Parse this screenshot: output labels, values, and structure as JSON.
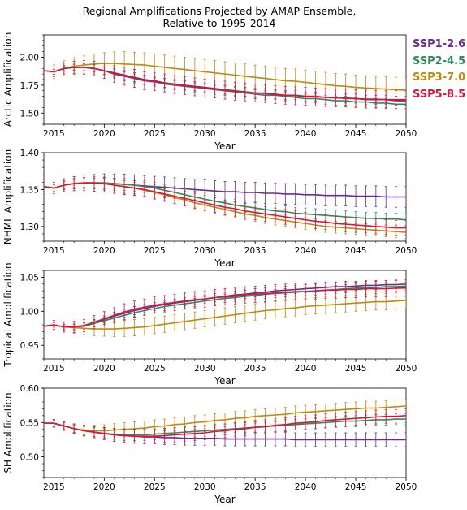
{
  "title_line1": "Regional Amplifications Projected by AMAP Ensemble,",
  "title_line2": "Relative to 1995-2014",
  "legend": [
    {
      "label": "SSP1-2.6",
      "color": "#6a2c91"
    },
    {
      "label": "SSP2-4.5",
      "color": "#2e8b57"
    },
    {
      "label": "SSP3-7.0",
      "color": "#c08a0a"
    },
    {
      "label": "SSP5-8.5",
      "color": "#dc143c"
    }
  ],
  "chart_data": [
    {
      "type": "line",
      "xlabel": "Year",
      "ylabel": "Arctic Amplification",
      "xlim": [
        2014,
        2050
      ],
      "ylim": [
        1.4,
        2.2
      ],
      "xticks": [
        "2015",
        "2020",
        "2025",
        "2030",
        "2035",
        "2040",
        "2045",
        "2050"
      ],
      "yticks": [
        "1.50",
        "1.75",
        "2.00"
      ],
      "x": [
        2014,
        2015,
        2016,
        2017,
        2018,
        2019,
        2020,
        2021,
        2022,
        2023,
        2024,
        2025,
        2026,
        2027,
        2028,
        2029,
        2030,
        2031,
        2032,
        2033,
        2034,
        2035,
        2036,
        2037,
        2038,
        2039,
        2040,
        2041,
        2042,
        2043,
        2044,
        2045,
        2046,
        2047,
        2048,
        2049,
        2050
      ],
      "series": [
        {
          "name": "SSP1-2.6",
          "color": "#6a2c91",
          "err": 0.04,
          "values": [
            1.88,
            1.87,
            1.9,
            1.91,
            1.91,
            1.9,
            1.88,
            1.86,
            1.84,
            1.82,
            1.8,
            1.79,
            1.77,
            1.76,
            1.75,
            1.74,
            1.73,
            1.72,
            1.71,
            1.7,
            1.69,
            1.68,
            1.68,
            1.67,
            1.66,
            1.66,
            1.65,
            1.65,
            1.64,
            1.64,
            1.63,
            1.63,
            1.62,
            1.62,
            1.62,
            1.61,
            1.61
          ]
        },
        {
          "name": "SSP2-4.5",
          "color": "#2e8b57",
          "err": 0.04,
          "values": [
            1.88,
            1.87,
            1.9,
            1.91,
            1.91,
            1.9,
            1.88,
            1.85,
            1.83,
            1.81,
            1.79,
            1.78,
            1.76,
            1.75,
            1.74,
            1.73,
            1.72,
            1.71,
            1.7,
            1.69,
            1.68,
            1.67,
            1.66,
            1.66,
            1.65,
            1.64,
            1.63,
            1.63,
            1.62,
            1.61,
            1.61,
            1.6,
            1.6,
            1.59,
            1.59,
            1.58,
            1.58
          ]
        },
        {
          "name": "SSP3-7.0",
          "color": "#c08a0a",
          "err": 0.11,
          "values": [
            1.88,
            1.87,
            1.9,
            1.92,
            1.93,
            1.94,
            1.945,
            1.945,
            1.94,
            1.935,
            1.93,
            1.92,
            1.91,
            1.9,
            1.89,
            1.88,
            1.87,
            1.86,
            1.85,
            1.84,
            1.83,
            1.82,
            1.81,
            1.8,
            1.79,
            1.785,
            1.775,
            1.765,
            1.755,
            1.745,
            1.74,
            1.73,
            1.725,
            1.72,
            1.715,
            1.71,
            1.705
          ]
        },
        {
          "name": "SSP5-8.5",
          "color": "#dc143c",
          "err": 0.08,
          "values": [
            1.88,
            1.87,
            1.9,
            1.91,
            1.91,
            1.9,
            1.88,
            1.85,
            1.83,
            1.81,
            1.79,
            1.78,
            1.77,
            1.755,
            1.745,
            1.735,
            1.725,
            1.715,
            1.705,
            1.695,
            1.69,
            1.68,
            1.675,
            1.665,
            1.66,
            1.655,
            1.65,
            1.645,
            1.64,
            1.635,
            1.635,
            1.63,
            1.625,
            1.625,
            1.62,
            1.62,
            1.62
          ]
        }
      ]
    },
    {
      "type": "line",
      "xlabel": "Year",
      "ylabel": "NHML Amplification",
      "xlim": [
        2014,
        2050
      ],
      "ylim": [
        1.28,
        1.4
      ],
      "xticks": [
        "2015",
        "2020",
        "2025",
        "2030",
        "2035",
        "2040",
        "2045",
        "2050"
      ],
      "yticks": [
        "1.30",
        "1.35",
        "1.40"
      ],
      "x": [
        2014,
        2015,
        2016,
        2017,
        2018,
        2019,
        2020,
        2021,
        2022,
        2023,
        2024,
        2025,
        2026,
        2027,
        2028,
        2029,
        2030,
        2031,
        2032,
        2033,
        2034,
        2035,
        2036,
        2037,
        2038,
        2039,
        2040,
        2041,
        2042,
        2043,
        2044,
        2045,
        2046,
        2047,
        2048,
        2049,
        2050
      ],
      "series": [
        {
          "name": "SSP1-2.6",
          "color": "#6a2c91",
          "err": 0.014,
          "values": [
            1.354,
            1.352,
            1.356,
            1.358,
            1.359,
            1.359,
            1.359,
            1.358,
            1.357,
            1.356,
            1.355,
            1.354,
            1.353,
            1.352,
            1.351,
            1.35,
            1.349,
            1.348,
            1.347,
            1.347,
            1.346,
            1.346,
            1.345,
            1.345,
            1.344,
            1.344,
            1.343,
            1.343,
            1.342,
            1.342,
            1.342,
            1.341,
            1.341,
            1.341,
            1.34,
            1.34,
            1.34
          ]
        },
        {
          "name": "SSP2-4.5",
          "color": "#2e8b57",
          "err": 0.008,
          "values": [
            1.354,
            1.352,
            1.356,
            1.358,
            1.359,
            1.359,
            1.359,
            1.358,
            1.357,
            1.356,
            1.354,
            1.352,
            1.349,
            1.346,
            1.343,
            1.34,
            1.337,
            1.334,
            1.332,
            1.329,
            1.327,
            1.325,
            1.323,
            1.321,
            1.32,
            1.318,
            1.317,
            1.316,
            1.315,
            1.314,
            1.313,
            1.312,
            1.311,
            1.311,
            1.31,
            1.31,
            1.309
          ]
        },
        {
          "name": "SSP3-7.0",
          "color": "#c08a0a",
          "err": 0.008,
          "values": [
            1.354,
            1.352,
            1.356,
            1.358,
            1.359,
            1.359,
            1.358,
            1.356,
            1.354,
            1.352,
            1.349,
            1.346,
            1.343,
            1.339,
            1.336,
            1.332,
            1.329,
            1.326,
            1.323,
            1.32,
            1.317,
            1.315,
            1.312,
            1.31,
            1.308,
            1.306,
            1.304,
            1.302,
            1.3,
            1.299,
            1.298,
            1.297,
            1.296,
            1.295,
            1.294,
            1.293,
            1.292
          ]
        },
        {
          "name": "SSP5-8.5",
          "color": "#dc143c",
          "err": 0.01,
          "values": [
            1.354,
            1.352,
            1.356,
            1.358,
            1.359,
            1.359,
            1.358,
            1.356,
            1.354,
            1.352,
            1.35,
            1.347,
            1.344,
            1.341,
            1.338,
            1.335,
            1.332,
            1.329,
            1.326,
            1.324,
            1.321,
            1.319,
            1.317,
            1.315,
            1.313,
            1.311,
            1.309,
            1.307,
            1.306,
            1.304,
            1.303,
            1.302,
            1.301,
            1.3,
            1.299,
            1.298,
            1.298
          ]
        }
      ]
    },
    {
      "type": "line",
      "xlabel": "Year",
      "ylabel": "Tropical Amplification",
      "xlim": [
        2014,
        2050
      ],
      "ylim": [
        0.93,
        1.06
      ],
      "xticks": [
        "2015",
        "2020",
        "2025",
        "2030",
        "2035",
        "2040",
        "2045",
        "2050"
      ],
      "yticks": [
        "0.95",
        "1.00",
        "1.05"
      ],
      "x": [
        2014,
        2015,
        2016,
        2017,
        2018,
        2019,
        2020,
        2021,
        2022,
        2023,
        2024,
        2025,
        2026,
        2027,
        2028,
        2029,
        2030,
        2031,
        2032,
        2033,
        2034,
        2035,
        2036,
        2037,
        2038,
        2039,
        2040,
        2041,
        2042,
        2043,
        2044,
        2045,
        2046,
        2047,
        2048,
        2049,
        2050
      ],
      "series": [
        {
          "name": "SSP1-2.6",
          "color": "#6a2c91",
          "err": 0.006,
          "values": [
            0.978,
            0.98,
            0.977,
            0.977,
            0.979,
            0.983,
            0.988,
            0.993,
            0.997,
            1.001,
            1.004,
            1.007,
            1.01,
            1.012,
            1.014,
            1.016,
            1.018,
            1.02,
            1.022,
            1.024,
            1.025,
            1.027,
            1.028,
            1.03,
            1.031,
            1.032,
            1.033,
            1.034,
            1.035,
            1.036,
            1.036,
            1.037,
            1.038,
            1.038,
            1.039,
            1.039,
            1.04
          ]
        },
        {
          "name": "SSP2-4.5",
          "color": "#2e8b57",
          "err": 0.006,
          "values": [
            0.978,
            0.98,
            0.977,
            0.977,
            0.978,
            0.982,
            0.986,
            0.99,
            0.994,
            0.998,
            1.001,
            1.004,
            1.007,
            1.009,
            1.011,
            1.013,
            1.015,
            1.017,
            1.019,
            1.02,
            1.022,
            1.023,
            1.025,
            1.026,
            1.027,
            1.028,
            1.029,
            1.03,
            1.031,
            1.032,
            1.033,
            1.034,
            1.034,
            1.035,
            1.036,
            1.036,
            1.037
          ]
        },
        {
          "name": "SSP3-7.0",
          "color": "#c08a0a",
          "err": 0.012,
          "values": [
            0.978,
            0.98,
            0.977,
            0.976,
            0.975,
            0.974,
            0.974,
            0.974,
            0.975,
            0.976,
            0.977,
            0.979,
            0.981,
            0.983,
            0.985,
            0.987,
            0.989,
            0.991,
            0.993,
            0.995,
            0.997,
            0.999,
            1.001,
            1.002,
            1.004,
            1.005,
            1.007,
            1.008,
            1.009,
            1.01,
            1.011,
            1.012,
            1.013,
            1.014,
            1.014,
            1.015,
            1.016
          ]
        },
        {
          "name": "SSP5-8.5",
          "color": "#dc143c",
          "err": 0.012,
          "values": [
            0.978,
            0.98,
            0.977,
            0.977,
            0.979,
            0.984,
            0.989,
            0.994,
            0.999,
            1.003,
            1.006,
            1.009,
            1.011,
            1.013,
            1.015,
            1.017,
            1.018,
            1.02,
            1.021,
            1.022,
            1.024,
            1.025,
            1.026,
            1.027,
            1.028,
            1.029,
            1.029,
            1.03,
            1.031,
            1.031,
            1.032,
            1.032,
            1.033,
            1.033,
            1.033,
            1.034,
            1.034
          ]
        }
      ]
    },
    {
      "type": "line",
      "xlabel": "Year",
      "ylabel": "SH Amplification",
      "xlim": [
        2014,
        2050
      ],
      "ylim": [
        0.47,
        0.6
      ],
      "xticks": [
        "2015",
        "2020",
        "2025",
        "2030",
        "2035",
        "2040",
        "2045",
        "2050"
      ],
      "yticks": [
        "0.50",
        "0.55",
        "0.60"
      ],
      "x": [
        2014,
        2015,
        2016,
        2017,
        2018,
        2019,
        2020,
        2021,
        2022,
        2023,
        2024,
        2025,
        2026,
        2027,
        2028,
        2029,
        2030,
        2031,
        2032,
        2033,
        2034,
        2035,
        2036,
        2037,
        2038,
        2039,
        2040,
        2041,
        2042,
        2043,
        2044,
        2045,
        2046,
        2047,
        2048,
        2049,
        2050
      ],
      "series": [
        {
          "name": "SSP1-2.6",
          "color": "#6a2c91",
          "err": 0.01,
          "values": [
            0.549,
            0.549,
            0.545,
            0.541,
            0.538,
            0.536,
            0.534,
            0.532,
            0.531,
            0.53,
            0.529,
            0.529,
            0.528,
            0.528,
            0.527,
            0.527,
            0.527,
            0.527,
            0.526,
            0.526,
            0.526,
            0.526,
            0.526,
            0.526,
            0.526,
            0.525,
            0.525,
            0.525,
            0.525,
            0.525,
            0.525,
            0.525,
            0.525,
            0.525,
            0.525,
            0.525,
            0.525
          ]
        },
        {
          "name": "SSP2-4.5",
          "color": "#2e8b57",
          "err": 0.008,
          "values": [
            0.549,
            0.549,
            0.545,
            0.541,
            0.538,
            0.536,
            0.534,
            0.533,
            0.532,
            0.532,
            0.532,
            0.533,
            0.534,
            0.535,
            0.536,
            0.537,
            0.538,
            0.539,
            0.54,
            0.541,
            0.542,
            0.543,
            0.544,
            0.545,
            0.546,
            0.547,
            0.548,
            0.549,
            0.55,
            0.551,
            0.552,
            0.552,
            0.553,
            0.554,
            0.554,
            0.555,
            0.555
          ]
        },
        {
          "name": "SSP3-7.0",
          "color": "#c08a0a",
          "err": 0.01,
          "values": [
            0.549,
            0.549,
            0.545,
            0.541,
            0.539,
            0.538,
            0.538,
            0.539,
            0.54,
            0.541,
            0.542,
            0.544,
            0.545,
            0.547,
            0.548,
            0.55,
            0.551,
            0.553,
            0.554,
            0.556,
            0.557,
            0.559,
            0.56,
            0.561,
            0.562,
            0.564,
            0.565,
            0.566,
            0.567,
            0.568,
            0.569,
            0.57,
            0.571,
            0.571,
            0.572,
            0.573,
            0.574
          ]
        },
        {
          "name": "SSP5-8.5",
          "color": "#dc143c",
          "err": 0.01,
          "values": [
            0.549,
            0.549,
            0.545,
            0.541,
            0.538,
            0.536,
            0.534,
            0.532,
            0.531,
            0.53,
            0.53,
            0.53,
            0.531,
            0.532,
            0.533,
            0.534,
            0.535,
            0.537,
            0.538,
            0.54,
            0.541,
            0.543,
            0.544,
            0.546,
            0.547,
            0.549,
            0.55,
            0.551,
            0.553,
            0.554,
            0.555,
            0.556,
            0.557,
            0.558,
            0.559,
            0.559,
            0.56
          ]
        }
      ]
    }
  ]
}
